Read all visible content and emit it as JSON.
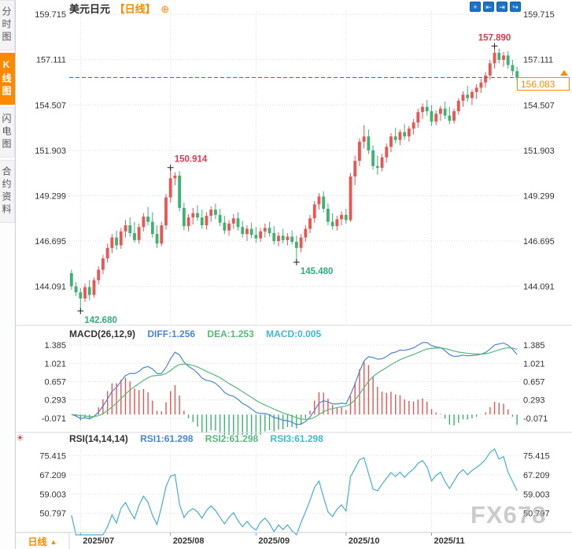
{
  "ui": {
    "sidebar": {
      "items": [
        {
          "label": "分时图",
          "active": false
        },
        {
          "label": "K线图",
          "active": true
        },
        {
          "label": "闪电图",
          "active": false
        },
        {
          "label": "合约资料",
          "active": false
        }
      ]
    },
    "header": {
      "symbol": "美元日元",
      "period_tag": "【日线】",
      "add_icon": "⊕"
    },
    "toolbar": {
      "icons": [
        {
          "name": "crosshair-icon",
          "glyph": "+"
        },
        {
          "name": "zoom-out-icon",
          "glyph": "⇤"
        },
        {
          "name": "zoom-in-icon",
          "glyph": "⇥"
        },
        {
          "name": "exit-fullscreen-icon",
          "glyph": "↪"
        }
      ]
    },
    "indicators": {
      "macd": {
        "title": "MACD(26,12,9)",
        "diff": "DIFF:1.256",
        "dea": "DEA:1.253",
        "macd": "MACD:0.005"
      },
      "rsi": {
        "title": "RSI(14,14,14)",
        "rsi1": "RSI1:61.298",
        "rsi2": "RSI2:61.298",
        "rsi3": "RSI3:61.298"
      }
    },
    "price_tag": {
      "value": "156.083"
    },
    "footer": {
      "period_label": "日线",
      "arrow": "▲"
    },
    "watermark": "FX678",
    "alert_icon": "☀"
  },
  "chart_data": {
    "type": "candlestick+macd+rsi",
    "symbol": "美元日元",
    "period": "日线",
    "current_price": 156.083,
    "price_axis": {
      "ticks": [
        159.715,
        157.111,
        154.507,
        151.903,
        149.299,
        146.695,
        144.091
      ]
    },
    "macd_axis": {
      "ticks": [
        1.385,
        1.021,
        0.657,
        0.293,
        -0.071
      ]
    },
    "rsi_axis": {
      "ticks": [
        75.415,
        67.209,
        59.003,
        50.797
      ]
    },
    "months": {
      "labels": [
        "2025/07",
        "2025/08",
        "2025/09",
        "2025/10",
        "2025/11"
      ],
      "indices": [
        2,
        22,
        41,
        61,
        80
      ]
    },
    "annotations": [
      {
        "index": 2,
        "price": 142.68,
        "label": "142.680",
        "pos": "below",
        "align": "start",
        "color": "#2fae7d"
      },
      {
        "index": 22,
        "price": 150.914,
        "label": "150.914",
        "pos": "above",
        "align": "start",
        "color": "#e8374f"
      },
      {
        "index": 50,
        "price": 145.48,
        "label": "145.480",
        "pos": "below",
        "align": "start",
        "color": "#2fae7d"
      },
      {
        "index": 94,
        "price": 157.89,
        "label": "157.890",
        "pos": "above",
        "align": "middle",
        "color": "#e8374f"
      }
    ],
    "colors": {
      "up": "#ef5350",
      "down": "#3cb371",
      "diff": "#4a86d2",
      "dea": "#56b87b",
      "rsi": "#45aed6",
      "grid": "#dcdcdc",
      "dash": "#1f7de0",
      "axis_text": "#333333",
      "accent_orange": "#ff8a00",
      "toolbar_blue": "#1a72c9"
    },
    "candles": [
      [
        144.85,
        145.05,
        143.9,
        144.1
      ],
      [
        144.1,
        144.35,
        143.55,
        143.75
      ],
      [
        143.75,
        144.0,
        142.68,
        143.4
      ],
      [
        143.4,
        144.25,
        143.2,
        144.05
      ],
      [
        144.05,
        144.45,
        143.3,
        143.6
      ],
      [
        143.6,
        144.6,
        143.45,
        144.45
      ],
      [
        144.45,
        145.25,
        144.2,
        145.05
      ],
      [
        145.05,
        145.9,
        144.8,
        145.7
      ],
      [
        145.7,
        146.55,
        145.45,
        146.3
      ],
      [
        146.3,
        147.1,
        146.0,
        146.9
      ],
      [
        146.9,
        147.3,
        146.2,
        146.45
      ],
      [
        146.45,
        147.45,
        146.25,
        147.25
      ],
      [
        147.25,
        147.9,
        146.9,
        147.6
      ],
      [
        147.6,
        148.05,
        146.95,
        147.15
      ],
      [
        147.15,
        147.8,
        146.6,
        146.75
      ],
      [
        146.75,
        147.7,
        146.55,
        147.5
      ],
      [
        147.5,
        148.3,
        147.25,
        148.1
      ],
      [
        148.1,
        148.65,
        147.6,
        147.8
      ],
      [
        147.8,
        148.35,
        146.9,
        147.1
      ],
      [
        147.1,
        147.6,
        146.3,
        146.55
      ],
      [
        146.55,
        147.8,
        146.4,
        147.6
      ],
      [
        147.6,
        149.4,
        147.35,
        149.2
      ],
      [
        149.2,
        150.914,
        148.9,
        150.3
      ],
      [
        150.3,
        150.65,
        149.9,
        150.45
      ],
      [
        150.45,
        150.7,
        148.4,
        148.6
      ],
      [
        148.6,
        148.9,
        147.3,
        147.55
      ],
      [
        147.55,
        148.25,
        147.25,
        148.05
      ],
      [
        148.05,
        148.6,
        147.65,
        148.3
      ],
      [
        148.3,
        148.75,
        147.85,
        148.05
      ],
      [
        148.05,
        148.5,
        147.4,
        147.6
      ],
      [
        147.6,
        148.35,
        147.35,
        148.15
      ],
      [
        148.15,
        148.7,
        147.8,
        148.5
      ],
      [
        148.5,
        148.85,
        147.95,
        148.2
      ],
      [
        148.2,
        148.55,
        147.55,
        147.75
      ],
      [
        147.75,
        148.15,
        147.1,
        147.3
      ],
      [
        147.3,
        147.9,
        147.0,
        147.7
      ],
      [
        147.7,
        148.25,
        147.4,
        148.0
      ],
      [
        148.0,
        148.35,
        147.3,
        147.5
      ],
      [
        147.5,
        147.85,
        146.9,
        147.1
      ],
      [
        147.1,
        147.6,
        146.7,
        147.4
      ],
      [
        147.4,
        147.75,
        146.85,
        147.05
      ],
      [
        147.05,
        147.5,
        146.6,
        146.85
      ],
      [
        146.85,
        147.45,
        146.65,
        147.25
      ],
      [
        147.25,
        147.7,
        146.9,
        147.45
      ],
      [
        147.45,
        147.8,
        146.95,
        147.15
      ],
      [
        147.15,
        147.55,
        146.5,
        146.7
      ],
      [
        146.7,
        147.2,
        146.4,
        147.0
      ],
      [
        147.0,
        147.4,
        146.55,
        146.75
      ],
      [
        146.75,
        147.15,
        146.45,
        146.95
      ],
      [
        146.95,
        147.3,
        146.5,
        146.65
      ],
      [
        146.65,
        147.0,
        145.48,
        146.3
      ],
      [
        146.3,
        147.1,
        146.05,
        146.9
      ],
      [
        146.9,
        147.6,
        146.65,
        147.4
      ],
      [
        147.4,
        148.2,
        147.15,
        148.0
      ],
      [
        148.0,
        149.0,
        147.75,
        148.8
      ],
      [
        148.8,
        149.45,
        148.5,
        149.25
      ],
      [
        149.25,
        149.55,
        148.35,
        148.55
      ],
      [
        148.55,
        148.85,
        147.6,
        147.8
      ],
      [
        147.8,
        148.3,
        147.35,
        147.55
      ],
      [
        147.55,
        148.15,
        147.3,
        147.95
      ],
      [
        147.95,
        148.4,
        147.6,
        148.2
      ],
      [
        148.2,
        148.55,
        147.7,
        147.9
      ],
      [
        147.9,
        150.6,
        147.8,
        150.4
      ],
      [
        150.4,
        151.6,
        149.9,
        151.3
      ],
      [
        151.3,
        152.6,
        151.0,
        152.4
      ],
      [
        152.4,
        153.35,
        152.0,
        152.7
      ],
      [
        152.7,
        153.1,
        151.7,
        151.9
      ],
      [
        151.9,
        152.2,
        150.8,
        151.0
      ],
      [
        151.0,
        151.6,
        150.5,
        150.9
      ],
      [
        150.9,
        151.7,
        150.7,
        151.5
      ],
      [
        151.5,
        152.3,
        151.2,
        152.1
      ],
      [
        152.1,
        152.9,
        151.8,
        152.7
      ],
      [
        152.7,
        153.2,
        152.3,
        152.5
      ],
      [
        152.5,
        153.1,
        152.2,
        152.95
      ],
      [
        152.95,
        153.4,
        152.5,
        152.7
      ],
      [
        152.7,
        153.3,
        152.4,
        153.15
      ],
      [
        153.15,
        153.7,
        152.8,
        153.5
      ],
      [
        153.5,
        154.3,
        153.2,
        154.1
      ],
      [
        154.1,
        154.6,
        153.7,
        154.4
      ],
      [
        154.4,
        154.8,
        153.9,
        154.15
      ],
      [
        154.15,
        154.5,
        153.3,
        153.55
      ],
      [
        153.55,
        154.2,
        153.35,
        154.0
      ],
      [
        154.0,
        154.45,
        153.6,
        154.3
      ],
      [
        154.3,
        154.7,
        153.7,
        153.9
      ],
      [
        153.9,
        154.4,
        153.4,
        153.6
      ],
      [
        153.6,
        154.3,
        153.45,
        154.15
      ],
      [
        154.15,
        154.9,
        153.95,
        154.75
      ],
      [
        154.75,
        155.3,
        154.4,
        155.1
      ],
      [
        155.1,
        155.6,
        154.7,
        154.9
      ],
      [
        154.9,
        155.4,
        154.5,
        155.25
      ],
      [
        155.25,
        155.7,
        154.85,
        155.5
      ],
      [
        155.5,
        156.0,
        155.2,
        155.8
      ],
      [
        155.8,
        156.4,
        155.5,
        156.2
      ],
      [
        156.2,
        157.1,
        155.95,
        156.9
      ],
      [
        156.9,
        157.89,
        156.6,
        157.5
      ],
      [
        157.5,
        157.75,
        156.9,
        157.1
      ],
      [
        157.1,
        157.55,
        156.7,
        157.35
      ],
      [
        157.35,
        157.6,
        156.6,
        156.8
      ],
      [
        156.8,
        157.1,
        156.2,
        156.45
      ],
      [
        156.45,
        156.7,
        155.9,
        156.083
      ]
    ]
  }
}
